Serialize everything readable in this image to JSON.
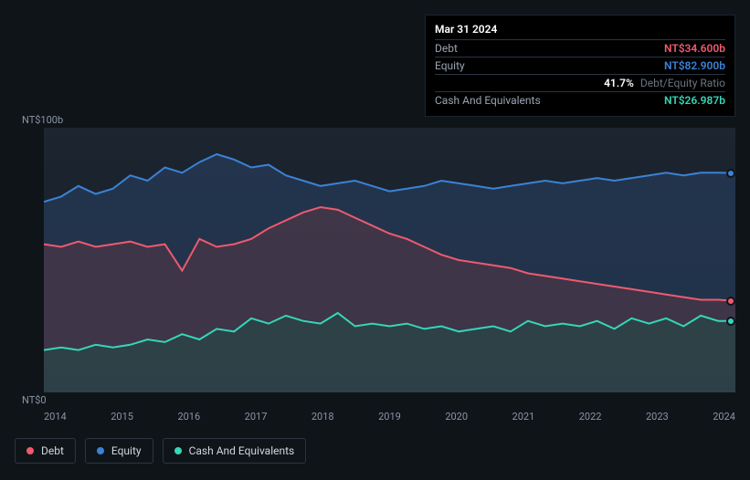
{
  "tooltip": {
    "date": "Mar 31 2024",
    "rows": [
      {
        "label": "Debt",
        "value": "NT$34.600b",
        "color": "#ef5a6f"
      },
      {
        "label": "Equity",
        "value": "NT$82.900b",
        "color": "#3b82d6"
      },
      {
        "label": "",
        "value": "41.7%",
        "sub": "Debt/Equity Ratio",
        "color": "#ffffff"
      },
      {
        "label": "Cash And Equivalents",
        "value": "NT$26.987b",
        "color": "#36d6b7"
      }
    ]
  },
  "chart": {
    "type": "area",
    "background": "#151c26",
    "y_label_top": "NT$100b",
    "y_label_bottom": "NT$0",
    "ylim": [
      0,
      100
    ],
    "x_ticks": [
      "2014",
      "2015",
      "2016",
      "2017",
      "2018",
      "2019",
      "2020",
      "2021",
      "2022",
      "2023",
      "2024"
    ],
    "series": {
      "equity": {
        "label": "Equity",
        "color": "#3b82d6",
        "fill": "#2a4466",
        "fill_opacity": 0.55,
        "values": [
          72,
          74,
          78,
          75,
          77,
          82,
          80,
          85,
          83,
          87,
          90,
          88,
          85,
          86,
          82,
          80,
          78,
          79,
          80,
          78,
          76,
          77,
          78,
          80,
          79,
          78,
          77,
          78,
          79,
          80,
          79,
          80,
          81,
          80,
          81,
          82,
          83,
          82,
          83,
          83,
          82.9
        ]
      },
      "debt": {
        "label": "Debt",
        "color": "#ef5a6f",
        "fill": "#5b3846",
        "fill_opacity": 0.5,
        "values": [
          56,
          55,
          57,
          55,
          56,
          57,
          55,
          56,
          46,
          58,
          55,
          56,
          58,
          62,
          65,
          68,
          70,
          69,
          66,
          63,
          60,
          58,
          55,
          52,
          50,
          49,
          48,
          47,
          45,
          44,
          43,
          42,
          41,
          40,
          39,
          38,
          37,
          36,
          35,
          35,
          34.6
        ]
      },
      "cash": {
        "label": "Cash And Equivalents",
        "color": "#36d6b7",
        "fill": "#234a48",
        "fill_opacity": 0.6,
        "values": [
          16,
          17,
          16,
          18,
          17,
          18,
          20,
          19,
          22,
          20,
          24,
          23,
          28,
          26,
          29,
          27,
          26,
          30,
          25,
          26,
          25,
          26,
          24,
          25,
          23,
          24,
          25,
          23,
          27,
          25,
          26,
          25,
          27,
          24,
          28,
          26,
          28,
          25,
          29,
          27,
          26.987
        ]
      }
    },
    "end_markers": [
      {
        "color": "#3b82d6",
        "y": 82.9
      },
      {
        "color": "#ef5a6f",
        "y": 34.6
      },
      {
        "color": "#36d6b7",
        "y": 26.987
      }
    ]
  },
  "legend": [
    {
      "label": "Debt",
      "color": "#ef5a6f"
    },
    {
      "label": "Equity",
      "color": "#3b82d6"
    },
    {
      "label": "Cash And Equivalents",
      "color": "#36d6b7"
    }
  ]
}
